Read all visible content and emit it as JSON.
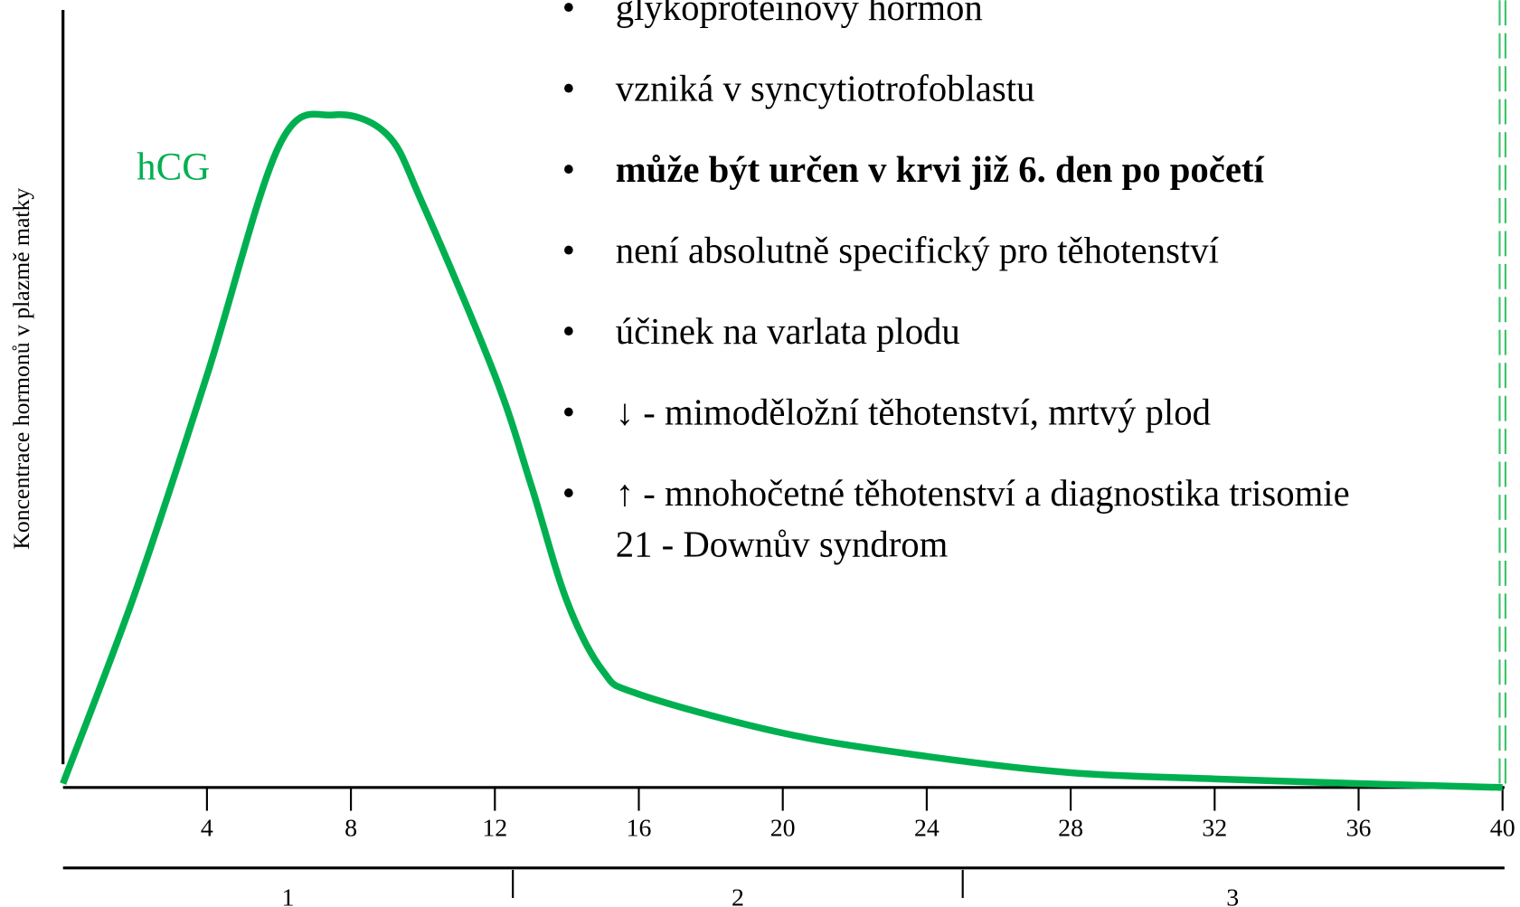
{
  "chart_data": {
    "type": "line",
    "y_label": "Koncentrace hormonů v plazmě matky",
    "series": [
      {
        "name": "hCG",
        "color": "#00b050",
        "x": [
          0,
          2,
          4,
          6,
          7.5,
          9,
          10,
          12,
          13,
          14,
          15,
          16,
          20,
          24,
          28,
          32,
          36,
          40
        ],
        "values": [
          0.5,
          25,
          53,
          82.5,
          86.5,
          84,
          75,
          53,
          39,
          24,
          15,
          12,
          7,
          4,
          1.9,
          1.1,
          0.5,
          0
        ]
      }
    ],
    "xlim": [
      0,
      40
    ],
    "xticks": [
      4,
      8,
      12,
      16,
      20,
      24,
      28,
      32,
      36,
      40
    ],
    "ylim": [
      0,
      100
    ],
    "trimesters": {
      "labels": [
        "1",
        "2",
        "3"
      ],
      "weeks": [
        0,
        12.5,
        25,
        40
      ]
    },
    "marker_line": {
      "x": 40,
      "color": "#3cc46a"
    },
    "bullets": [
      {
        "lines": [
          "glykoproteinový hormon"
        ],
        "bold": false
      },
      {
        "lines": [
          "vzniká v syncytiotrofoblastu"
        ],
        "bold": false
      },
      {
        "lines": [
          "může být určen v krvi již 6. den po početí"
        ],
        "bold": true
      },
      {
        "lines": [
          "není absolutně specifický pro těhotenství"
        ],
        "bold": false
      },
      {
        "lines": [
          "účinek na varlata plodu"
        ],
        "bold": false
      },
      {
        "lines": [
          "↓ - mimoděložní těhotenství, mrtvý plod"
        ],
        "bold": false
      },
      {
        "lines": [
          "↑ - mnohočetné těhotenství a diagnostika trisomie",
          "21 - Downův syndrom"
        ],
        "bold": false
      }
    ]
  }
}
